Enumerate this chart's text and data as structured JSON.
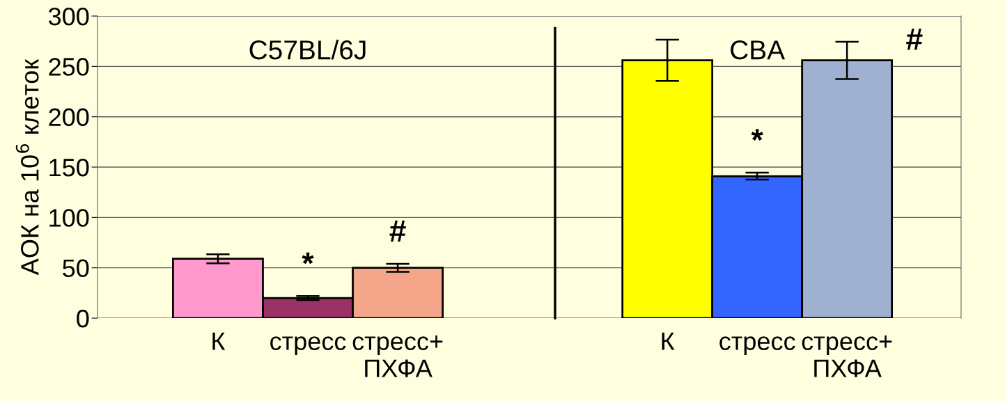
{
  "chart_data": [
    {
      "type": "bar",
      "ylabel": "АОК на 10$^{6}$ клеток",
      "categories": [
        "К",
        "стресс",
        "стресс+\nПХФА"
      ],
      "values": [
        59,
        20,
        50
      ],
      "errors": [
        4.5,
        2,
        4
      ],
      "colors": [
        "#ff99cc",
        "#993366",
        "#f4a58a"
      ],
      "ylim": [
        0,
        300
      ],
      "yticks": [
        0,
        50,
        100,
        150,
        200,
        250,
        300
      ],
      "grid": "y",
      "legend": false,
      "annotations": [
        "C57BL/6J",
        "*",
        "#"
      ]
    },
    {
      "type": "bar",
      "categories": [
        "К",
        "стресс",
        "стресс+\nПХФА"
      ],
      "values": [
        256,
        141,
        256
      ],
      "errors": [
        20.5,
        3.5,
        18.5
      ],
      "colors": [
        "#ffff00",
        "#3366ff",
        "#9fb0d0"
      ],
      "ylim": [
        0,
        300
      ],
      "yticks": [
        0,
        50,
        100,
        150,
        200,
        250,
        300
      ],
      "tick_labels": "x",
      "grid": "y",
      "legend": false,
      "annotations": [
        "CBA",
        "*",
        "#"
      ]
    }
  ]
}
